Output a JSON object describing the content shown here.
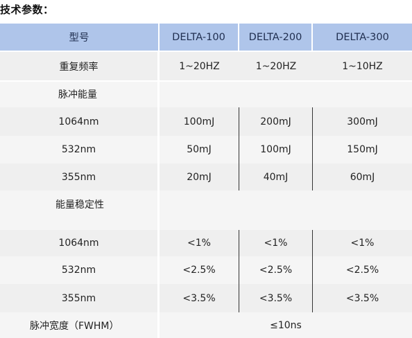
{
  "title": "技术参数：",
  "table": {
    "headers": [
      "型号",
      "DELTA-100",
      "DELTA-200",
      "DELTA-300"
    ],
    "repetition": {
      "label": "重复频率",
      "values": [
        "1~20HZ",
        "1~20HZ",
        "1~10HZ"
      ]
    },
    "pulse_energy": {
      "label": "脉冲能量",
      "rows": [
        {
          "label": "1064nm",
          "values": [
            "100mJ",
            "200mJ",
            "300mJ"
          ]
        },
        {
          "label": "532nm",
          "values": [
            "50mJ",
            "100mJ",
            "150mJ"
          ]
        },
        {
          "label": "355nm",
          "values": [
            "20mJ",
            "40mJ",
            "60mJ"
          ]
        }
      ]
    },
    "energy_stability": {
      "label": "能量稳定性",
      "rows": [
        {
          "label": "1064nm",
          "values": [
            "<1%",
            "<1%",
            "<1%"
          ]
        },
        {
          "label": "532nm",
          "values": [
            "<2.5%",
            "<2.5%",
            "<2.5%"
          ]
        },
        {
          "label": "355nm",
          "values": [
            "<3.5%",
            "<3.5%",
            "<3.5%"
          ]
        }
      ]
    },
    "pulse_width": {
      "label": "脉冲宽度（FWHM）",
      "value": "≤10ns"
    }
  }
}
